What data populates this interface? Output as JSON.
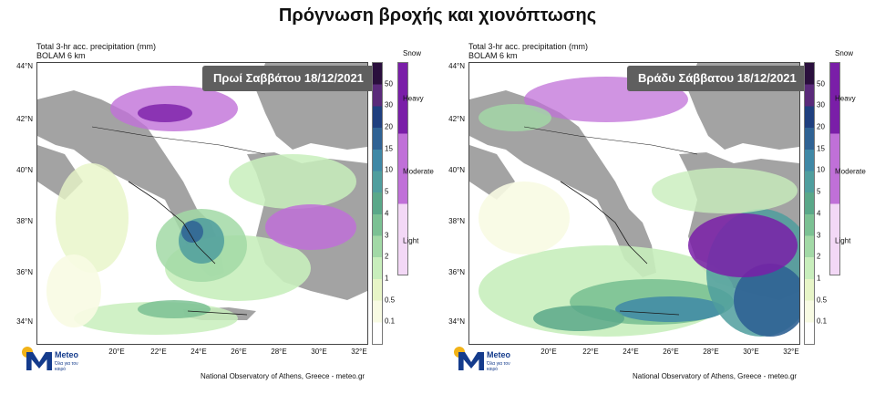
{
  "page_title": "Πρόγνωση βροχής και χιονόπτωσης",
  "panels": [
    {
      "header_line1": "Total 3-hr acc. precipitation (mm)",
      "header_line2": "BOLAM 6 km",
      "badge": "Πρωί Σαββάτου 18/12/2021",
      "credit": "National Observatory of Athens, Greece - meteo.gr"
    },
    {
      "header_line1": "Total 3-hr acc. precipitation (mm)",
      "header_line2": "BOLAM 6 km",
      "badge": "Βράδυ Σάββατου 18/12/2021",
      "credit": "National Observatory of Athens, Greece - meteo.gr"
    }
  ],
  "axes": {
    "lat_labels": [
      "44°N",
      "42°N",
      "40°N",
      "38°N",
      "36°N",
      "34°N"
    ],
    "lon_labels": [
      "20°E",
      "22°E",
      "24°E",
      "26°E",
      "28°E",
      "30°E",
      "32°E"
    ]
  },
  "legend": {
    "rain_ticks": [
      "50",
      "30",
      "20",
      "15",
      "10",
      "5",
      "4",
      "3",
      "2",
      "1",
      "0.5",
      "0.1"
    ],
    "rain_colors": [
      "#2a0f3d",
      "#5a2a7a",
      "#1f3f7f",
      "#2f6294",
      "#3f88a6",
      "#4f9e9e",
      "#5aa889",
      "#7bc193",
      "#a2d9a6",
      "#c8eebc",
      "#e7f5c7",
      "#f8fbe3",
      "#ffffff"
    ],
    "snow_title": "Snow",
    "snow_labels": [
      "Heavy",
      "Moderate",
      "Light"
    ],
    "snow_colors": [
      "#7a1ea8",
      "#c070d8",
      "#f3d8f6"
    ]
  },
  "logo": {
    "name": "Meteo",
    "tagline": "Όλα για τον καιρό"
  },
  "map_colors": {
    "sea": "#ffffff",
    "land": "#a3a3a3",
    "border": "#1a1a1a"
  }
}
